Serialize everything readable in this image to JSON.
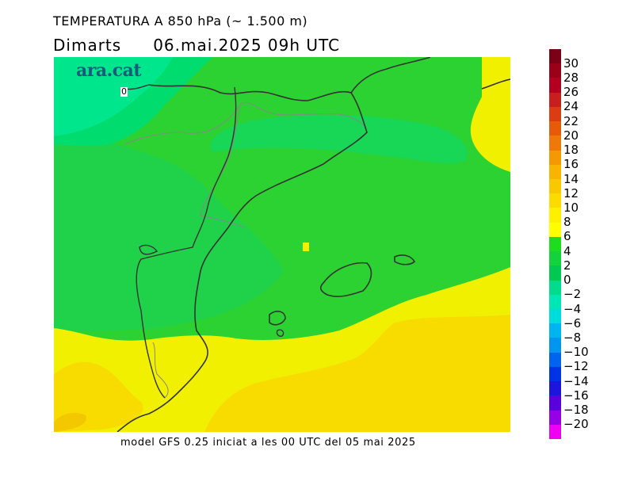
{
  "header": {
    "title": "TEMPERATURA A 850 hPa (~ 1.500 m)",
    "day": "Dimarts",
    "datetime": "06.mai.2025 09h UTC"
  },
  "map": {
    "logo": "ara.cat",
    "contour_label": "0"
  },
  "footer": {
    "model_text": "model GFS 0.25 iniciat a les 00 UTC del 05 mai 2025"
  },
  "legend": {
    "labels": [
      "30",
      "28",
      "26",
      "24",
      "22",
      "20",
      "18",
      "16",
      "14",
      "12",
      "10",
      "8",
      "6",
      "4",
      "2",
      "0",
      "−2",
      "−4",
      "−6",
      "−8",
      "−10",
      "−12",
      "−14",
      "−16",
      "−18",
      "−20"
    ],
    "colors": [
      "#7a0018",
      "#9a0018",
      "#b40020",
      "#c81e1e",
      "#dc3c14",
      "#e65a0a",
      "#ee780a",
      "#f49a00",
      "#f8b400",
      "#fac800",
      "#fcdc00",
      "#fff000",
      "#ffff00",
      "#1edc1e",
      "#14d23c",
      "#00c850",
      "#00dc8c",
      "#00e6b4",
      "#00dcdc",
      "#00b4f0",
      "#0096f0",
      "#0064f0",
      "#0032e6",
      "#1e14dc",
      "#5a00dc",
      "#9600e6",
      "#f000f0"
    ]
  },
  "colors": {
    "map_green": "#2cd232",
    "map_light_green": "#00e68c",
    "map_yellow": "#f0f000",
    "map_gold": "#f8dc00",
    "coastline": "#333333"
  }
}
